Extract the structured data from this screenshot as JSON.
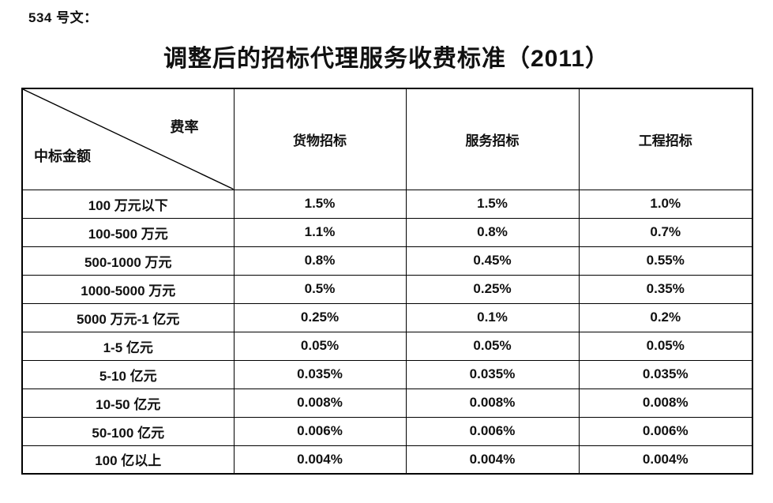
{
  "page": {
    "doc_label": "534 号文：",
    "title": "调整后的招标代理服务收费标准（2011）"
  },
  "table": {
    "corner": {
      "top_right": "费率",
      "bottom_left": "中标金额"
    },
    "columns": [
      "货物招标",
      "服务招标",
      "工程招标"
    ],
    "rows": [
      {
        "amount": "100 万元以下",
        "values": [
          "1.5%",
          "1.5%",
          "1.0%"
        ]
      },
      {
        "amount": "100-500 万元",
        "values": [
          "1.1%",
          "0.8%",
          "0.7%"
        ]
      },
      {
        "amount": "500-1000 万元",
        "values": [
          "0.8%",
          "0.45%",
          "0.55%"
        ]
      },
      {
        "amount": "1000-5000 万元",
        "values": [
          "0.5%",
          "0.25%",
          "0.35%"
        ]
      },
      {
        "amount": "5000 万元-1 亿元",
        "values": [
          "0.25%",
          "0.1%",
          "0.2%"
        ]
      },
      {
        "amount": "1-5 亿元",
        "values": [
          "0.05%",
          "0.05%",
          "0.05%"
        ]
      },
      {
        "amount": "5-10 亿元",
        "values": [
          "0.035%",
          "0.035%",
          "0.035%"
        ]
      },
      {
        "amount": "10-50 亿元",
        "values": [
          "0.008%",
          "0.008%",
          "0.008%"
        ]
      },
      {
        "amount": "50-100 亿元",
        "values": [
          "0.006%",
          "0.006%",
          "0.006%"
        ]
      },
      {
        "amount": "100 亿以上",
        "values": [
          "0.004%",
          "0.004%",
          "0.004%"
        ]
      }
    ],
    "colors": {
      "border": "#000000",
      "text": "#111111",
      "background": "#ffffff"
    }
  }
}
